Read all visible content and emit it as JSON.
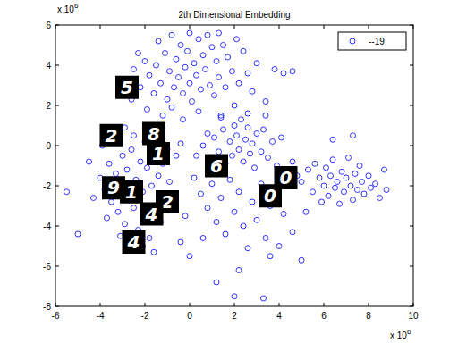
{
  "chart_data": {
    "type": "scatter",
    "title": "2th Dimensional Embedding",
    "xlim": [
      -6,
      10
    ],
    "ylim": [
      -8,
      6
    ],
    "xticks": [
      -6,
      -4,
      -2,
      0,
      2,
      4,
      6,
      8,
      10
    ],
    "yticks": [
      -8,
      -6,
      -4,
      -2,
      0,
      2,
      4,
      6
    ],
    "x_multiplier": {
      "text": "x 10",
      "exponent": "6"
    },
    "y_multiplier": {
      "text": "x 10",
      "exponent": "6"
    },
    "legend": "northeast",
    "series": [
      {
        "name": "--19",
        "color": "#0000ff",
        "marker": "o",
        "x": [
          -2.8,
          -2.5,
          -2.2,
          -2.0,
          -1.8,
          -1.6,
          -1.5,
          -1.3,
          -1.1,
          -1.0,
          -0.9,
          -0.7,
          -0.6,
          -0.5,
          -0.4,
          -0.3,
          -0.2,
          -0.1,
          0.0,
          0.1,
          0.2,
          0.3,
          0.4,
          0.5,
          0.6,
          0.7,
          0.8,
          0.9,
          1.0,
          1.1,
          1.2,
          1.3,
          1.5,
          1.6,
          1.7,
          1.9,
          2.1,
          2.2,
          2.4,
          2.6,
          2.8,
          3.0,
          -2.6,
          -1.9,
          -1.2,
          -0.8,
          -0.3,
          0.4,
          -1.4,
          -0.8,
          0.0,
          1.3,
          -2.3,
          3.4,
          3.8,
          4.2,
          4.6,
          2.0,
          1.4,
          -3.0,
          -4.0,
          -3.8,
          -3.6,
          -3.5,
          -3.3,
          -3.2,
          -3.0,
          -3.0,
          -2.9,
          -2.8,
          -2.7,
          -2.6,
          -2.5,
          -2.4,
          -2.3,
          -2.2,
          -2.1,
          -2.0,
          -1.9,
          -1.8,
          -1.7,
          -1.6,
          -1.5,
          -1.4,
          -1.3,
          -1.2,
          -1.1,
          -1.0,
          -0.9,
          -0.8,
          -3.4,
          -2.9,
          -2.5,
          -2.0,
          -1.5,
          -3.7,
          -2.6,
          -2.1,
          -1.6,
          -3.1,
          -4.3,
          -4.5,
          -3.9,
          -0.6,
          -0.4,
          0.6,
          0.9,
          1.1,
          1.3,
          1.5,
          1.6,
          1.8,
          1.9,
          2.0,
          2.1,
          2.2,
          2.3,
          2.4,
          2.5,
          2.6,
          2.7,
          2.8,
          2.9,
          3.0,
          3.2,
          3.3,
          3.5,
          3.7,
          3.9,
          4.1,
          0.3,
          0.8,
          1.4,
          2.6,
          3.4,
          5.0,
          5.3,
          5.5,
          5.6,
          5.8,
          5.9,
          6.0,
          6.1,
          6.2,
          6.3,
          6.4,
          6.5,
          6.6,
          6.7,
          6.8,
          6.9,
          7.0,
          7.1,
          7.2,
          7.3,
          7.4,
          7.5,
          7.6,
          7.7,
          7.8,
          8.0,
          8.1,
          8.3,
          8.5,
          8.7,
          8.8,
          6.4,
          7.3,
          5.2,
          4.6,
          0.2,
          0.5,
          0.8,
          1.0,
          1.2,
          1.4,
          1.6,
          1.8,
          2.0,
          2.2,
          2.4,
          2.6,
          2.8,
          3.0,
          3.2,
          3.4,
          3.6,
          3.8,
          4.0,
          4.2,
          4.4,
          4.6,
          4.8,
          5.0,
          -0.2,
          -0.4,
          0.0,
          0.6,
          1.2,
          2.0,
          3.3,
          -5.0,
          -5.5,
          3.6,
          2.2
        ],
        "values": [
          3.2,
          3.8,
          2.9,
          4.2,
          3.5,
          2.6,
          4.0,
          3.1,
          4.6,
          2.3,
          3.7,
          2.9,
          4.3,
          3.4,
          5.0,
          2.6,
          3.9,
          4.7,
          3.1,
          2.2,
          4.1,
          3.5,
          5.3,
          2.8,
          4.5,
          3.8,
          5.5,
          3.0,
          4.9,
          2.5,
          4.2,
          3.4,
          5.0,
          2.9,
          4.4,
          3.7,
          5.3,
          3.1,
          4.7,
          3.6,
          2.7,
          4.1,
          2.3,
          1.8,
          1.5,
          1.9,
          1.3,
          1.7,
          5.2,
          5.5,
          5.6,
          5.6,
          4.6,
          2.2,
          3.8,
          3.6,
          3.7,
          2.0,
          1.5,
          2.6,
          -1.6,
          -2.2,
          -0.9,
          -2.8,
          -1.4,
          -3.3,
          -0.5,
          -2.0,
          -3.9,
          -1.2,
          -2.6,
          -0.2,
          -3.1,
          -1.7,
          -4.2,
          -0.8,
          -2.3,
          -3.6,
          -1.1,
          -4.6,
          -2.0,
          -0.4,
          -3.0,
          -1.5,
          -3.8,
          -0.9,
          -2.5,
          -0.2,
          -1.8,
          -3.2,
          0.4,
          0.9,
          0.5,
          0.2,
          0.6,
          -3.6,
          -4.8,
          -5.0,
          -5.3,
          -4.5,
          -2.6,
          -0.8,
          0.0,
          -0.5,
          0.1,
          0.0,
          -0.6,
          0.4,
          -0.3,
          0.8,
          -0.9,
          0.2,
          -0.5,
          1.0,
          0.5,
          -0.2,
          1.3,
          -0.8,
          0.3,
          0.9,
          -0.4,
          0.1,
          -1.1,
          0.6,
          -0.3,
          0.8,
          -0.6,
          0.2,
          -1.0,
          0.4,
          -0.5,
          0.6,
          1.4,
          1.6,
          1.5,
          -1.8,
          -1.2,
          -2.3,
          -0.9,
          -1.6,
          -2.8,
          -2.0,
          -1.1,
          -2.5,
          -1.5,
          -0.7,
          -2.1,
          -1.8,
          -2.9,
          -1.3,
          -2.3,
          -1.6,
          -0.6,
          -2.0,
          -2.7,
          -1.4,
          -2.2,
          -1.0,
          -1.8,
          -2.4,
          -1.5,
          -2.1,
          -1.9,
          -2.6,
          -1.2,
          -2.2,
          0.3,
          0.5,
          -3.3,
          -0.8,
          -1.6,
          -2.4,
          -3.1,
          -1.9,
          -3.8,
          -2.6,
          -4.4,
          -1.7,
          -3.3,
          -2.3,
          -4.0,
          -5.1,
          -2.8,
          -3.7,
          -1.9,
          -4.6,
          -3.0,
          -2.2,
          -5.0,
          -3.4,
          -2.0,
          -4.3,
          -1.5,
          -5.7,
          -3.5,
          -4.8,
          -5.5,
          -4.6,
          -6.8,
          -7.5,
          -7.6,
          -4.4,
          -2.3,
          -5.5,
          -6.2
        ]
      }
    ],
    "annotations": [
      {
        "text": "5",
        "x": -2.8,
        "y": 2.9
      },
      {
        "text": "2",
        "x": -3.5,
        "y": 0.5
      },
      {
        "text": "8",
        "x": -1.6,
        "y": 0.6
      },
      {
        "text": "1",
        "x": -1.4,
        "y": -0.4
      },
      {
        "text": "6",
        "x": 1.2,
        "y": -1.0
      },
      {
        "text": "0",
        "x": 4.3,
        "y": -1.6
      },
      {
        "text": "0",
        "x": 3.6,
        "y": -2.5
      },
      {
        "text": "9",
        "x": -3.4,
        "y": -2.1
      },
      {
        "text": "1",
        "x": -2.6,
        "y": -2.3
      },
      {
        "text": "2",
        "x": -1.0,
        "y": -2.8
      },
      {
        "text": "4",
        "x": -1.7,
        "y": -3.4
      },
      {
        "text": "4",
        "x": -2.5,
        "y": -4.8
      }
    ]
  }
}
